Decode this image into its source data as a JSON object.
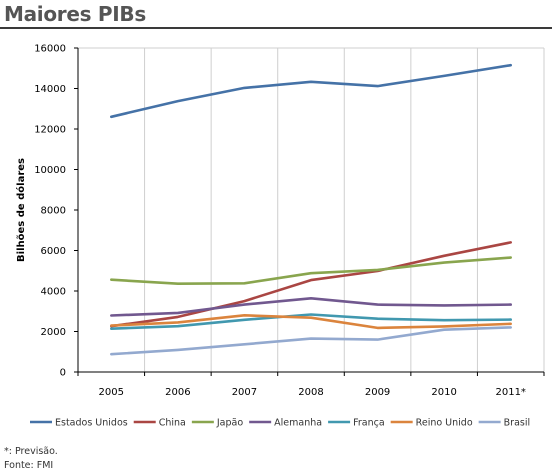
{
  "page": {
    "title": "Maiores PIBs"
  },
  "footnotes": {
    "forecast": "*: Previsão.",
    "source": "Fonte: FMI"
  },
  "chart_data": {
    "type": "line",
    "title": "",
    "xlabel": "",
    "ylabel": "Bilhões de dólares",
    "categories": [
      "2005",
      "2006",
      "2007",
      "2008",
      "2009",
      "2010",
      "2011*"
    ],
    "ylim": [
      0,
      16000
    ],
    "yticks": [
      0,
      2000,
      4000,
      6000,
      8000,
      10000,
      12000,
      14000,
      16000
    ],
    "grid": "vertical",
    "legend_position": "bottom",
    "series": [
      {
        "name": "Estados Unidos",
        "color": "#4572a7",
        "values": [
          12600,
          13380,
          14030,
          14330,
          14120,
          14620,
          15150
        ]
      },
      {
        "name": "China",
        "color": "#aa4643",
        "values": [
          2260,
          2720,
          3500,
          4540,
          4990,
          5740,
          6400
        ]
      },
      {
        "name": "Japão",
        "color": "#89a54e",
        "values": [
          4560,
          4360,
          4380,
          4880,
          5040,
          5400,
          5650
        ]
      },
      {
        "name": "Alemanha",
        "color": "#71588f",
        "values": [
          2790,
          2920,
          3330,
          3640,
          3330,
          3290,
          3330
        ]
      },
      {
        "name": "França",
        "color": "#4198af",
        "values": [
          2140,
          2260,
          2580,
          2840,
          2630,
          2560,
          2590
        ]
      },
      {
        "name": "Reino Unido",
        "color": "#db843d",
        "values": [
          2290,
          2450,
          2800,
          2680,
          2180,
          2250,
          2380
        ]
      },
      {
        "name": "Brasil",
        "color": "#93a9cf",
        "values": [
          880,
          1090,
          1370,
          1650,
          1600,
          2090,
          2200
        ]
      }
    ]
  }
}
